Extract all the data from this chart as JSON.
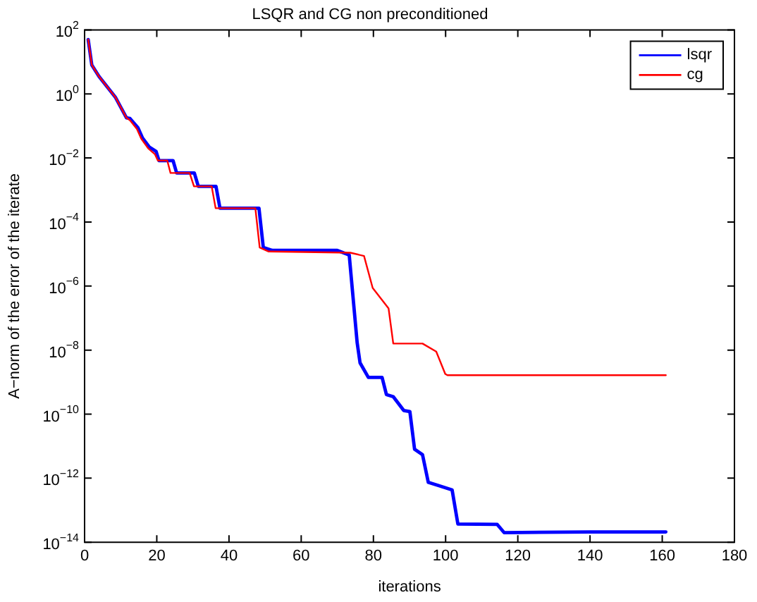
{
  "chart_data": {
    "type": "line",
    "title": "LSQR and CG non preconditioned",
    "xlabel": "iterations",
    "ylabel": "A−norm of the error of the iterate",
    "log": "y",
    "grid": false,
    "legend": "top right",
    "marker": "none",
    "line_style": "solid",
    "xlim": [
      0,
      180
    ],
    "xticks": [
      0,
      20,
      40,
      60,
      80,
      100,
      120,
      140,
      160,
      180
    ],
    "ylim": [
      1e-14,
      100
    ],
    "yticks": [
      {
        "value": 100,
        "label": "10$^{2}$"
      },
      {
        "value": 1,
        "label": "10$^{0}$"
      },
      {
        "value": 0.01,
        "label": "10$^{−2}$"
      },
      {
        "value": 0.0001,
        "label": "10$^{−4}$"
      },
      {
        "value": 1e-06,
        "label": "10$^{−6}$"
      },
      {
        "value": 1e-08,
        "label": "10$^{−8}$"
      },
      {
        "value": 1e-10,
        "label": "10$^{−10}$"
      },
      {
        "value": 1e-12,
        "label": "10$^{−12}$"
      },
      {
        "value": 1e-14,
        "label": "10$^{−14}$"
      }
    ],
    "series": [
      {
        "name": "lsqr",
        "color": "#0000ff",
        "x": [
          1,
          2,
          4,
          8.5,
          11.6,
          12.6,
          14.8,
          16,
          17.9,
          19.8,
          20.6,
          24.5,
          25.5,
          30.4,
          31.5,
          36.4,
          37.5,
          48.3,
          49.5,
          52,
          70,
          73.3,
          75.5,
          76.3,
          78.6,
          82.4,
          83.6,
          85.5,
          88.4,
          90.1,
          91.4,
          93.6,
          95.2,
          98,
          101.8,
          103.4,
          114.3,
          116.2,
          140,
          161
        ],
        "values": [
          50,
          8,
          3.5,
          0.8,
          0.18,
          0.17,
          0.087,
          0.043,
          0.022,
          0.016,
          0.0083,
          0.0083,
          0.0034,
          0.0034,
          0.0013,
          0.0013,
          0.00027,
          0.00027,
          1.6e-05,
          1.3e-05,
          1.3e-05,
          9.3e-06,
          1.7e-08,
          4e-09,
          1.4e-09,
          1.4e-09,
          4.1e-10,
          3.5e-10,
          1.3e-10,
          1.2e-10,
          8e-12,
          5.4e-12,
          7.4e-13,
          5.9e-13,
          4.3e-13,
          3.7e-14,
          3.6e-14,
          2e-14,
          2.1e-14,
          2.1e-14
        ]
      },
      {
        "name": "cg",
        "color": "#ff0000",
        "x": [
          1,
          2,
          4,
          8.5,
          11.6,
          12.6,
          14.5,
          15.7,
          17.6,
          19.5,
          20.3,
          22.9,
          23.8,
          29.1,
          30.3,
          35.2,
          36.3,
          47.3,
          48.5,
          51,
          73.6,
          77.4,
          79.8,
          84.2,
          85.5,
          93.6,
          97.4,
          99.9,
          100.5,
          161
        ],
        "values": [
          50,
          8,
          3.5,
          0.8,
          0.18,
          0.15,
          0.08,
          0.04,
          0.02,
          0.013,
          0.0083,
          0.0083,
          0.0034,
          0.0034,
          0.0013,
          0.0013,
          0.00027,
          0.00027,
          1.6e-05,
          1.2e-05,
          1.1e-05,
          8.7e-06,
          8.7e-07,
          2e-07,
          1.6e-08,
          1.6e-08,
          9e-09,
          1.8e-09,
          1.65e-09,
          1.65e-09
        ]
      }
    ]
  }
}
